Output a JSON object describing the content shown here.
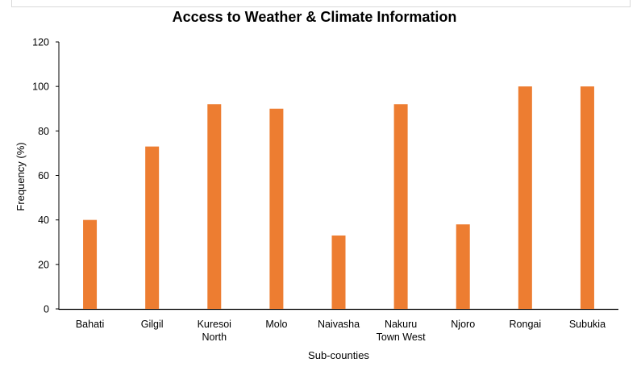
{
  "chart_data": {
    "type": "bar",
    "title": "Access to Weather & Climate Information",
    "xlabel": "Sub-counties",
    "ylabel": "Frequency (%)",
    "categories": [
      [
        "Bahati"
      ],
      [
        "Gilgil"
      ],
      [
        "Kuresoi",
        "North"
      ],
      [
        "Molo"
      ],
      [
        "Naivasha"
      ],
      [
        "Nakuru",
        "Town West"
      ],
      [
        "Njoro"
      ],
      [
        "Rongai"
      ],
      [
        "Subukia"
      ]
    ],
    "values": [
      40,
      73,
      92,
      90,
      33,
      92,
      38,
      100,
      100
    ],
    "ylim": [
      0,
      120
    ],
    "yticks": [
      0,
      20,
      40,
      60,
      80,
      100,
      120
    ],
    "bar_color": "#ED7D31",
    "grid": false,
    "legend": "none"
  }
}
